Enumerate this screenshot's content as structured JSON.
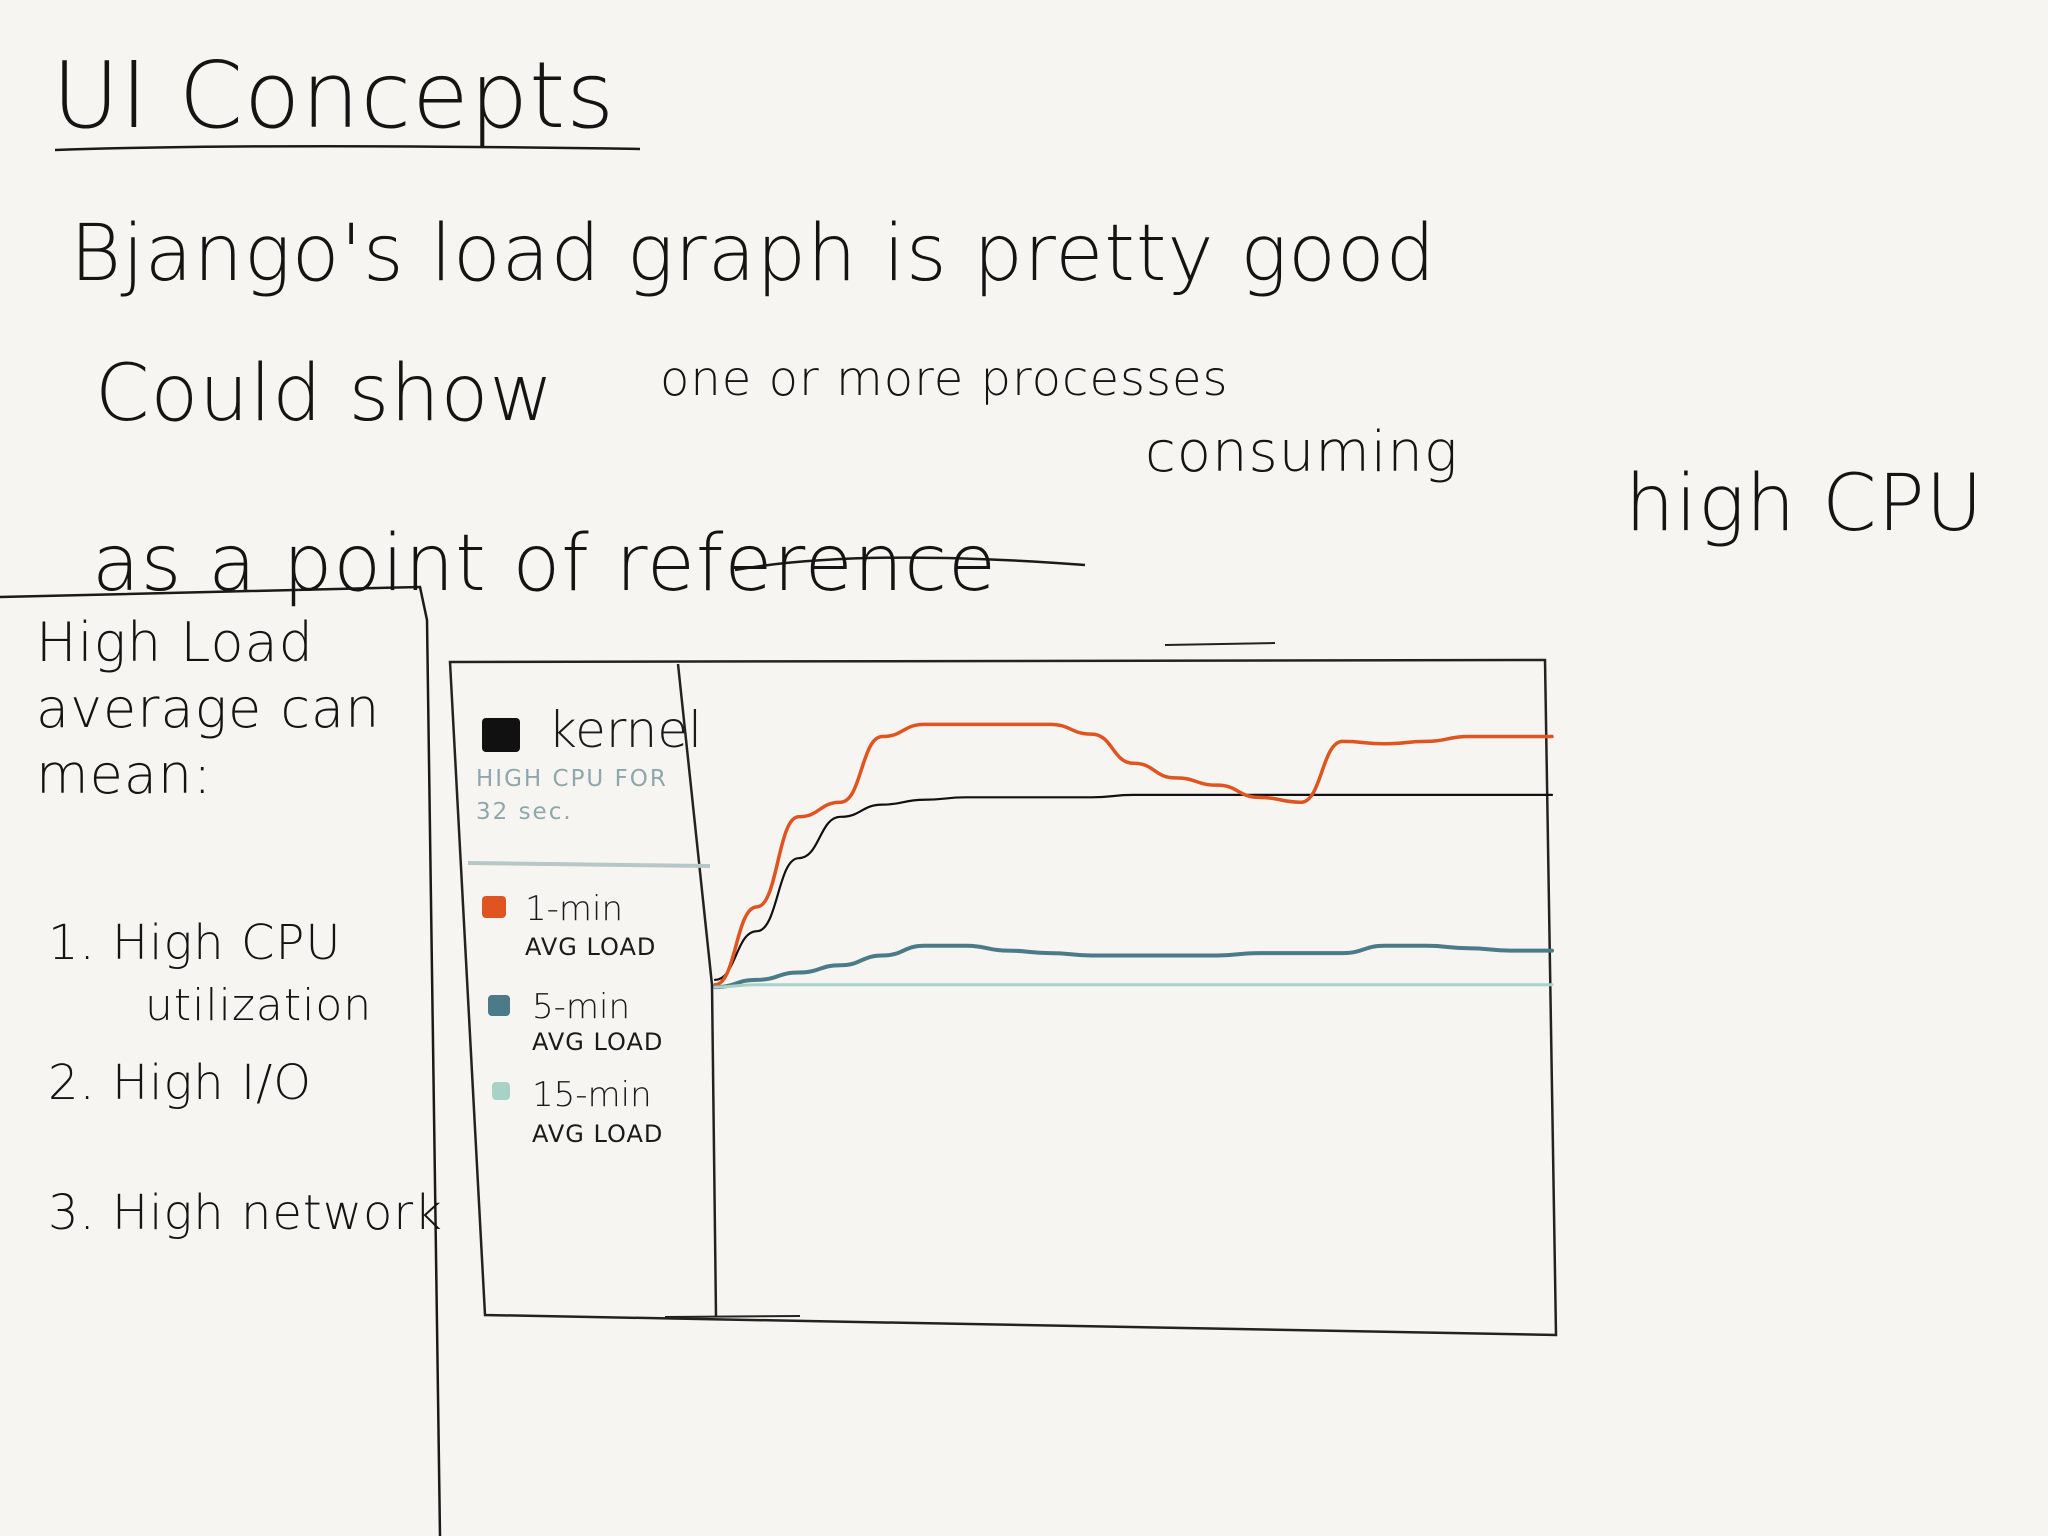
{
  "heading": {
    "title": "UI Concepts"
  },
  "notes": {
    "line1": "Bjango's load graph is pretty good",
    "line2_start": "Could show",
    "line2_inserted": "one or more processes",
    "line2_mid": "consuming",
    "line2_end": "high CPU",
    "line3": "as a point of reference"
  },
  "side_notes": {
    "title": "High Load average can mean:",
    "items": [
      "1. High CPU",
      "utilization",
      "2. High I/O",
      "3. High network"
    ]
  },
  "legend": {
    "kernel": {
      "label": "kernel",
      "note": "HIGH CPU FOR 32 sec.",
      "color": "#111111"
    },
    "series": [
      {
        "label": "1-min",
        "sub": "AVG LOAD",
        "color": "#e0541f"
      },
      {
        "label": "5-min",
        "sub": "AVG LOAD",
        "color": "#4b7a88"
      },
      {
        "label": "15-min",
        "sub": "AVG LOAD",
        "color": "#a8d2c7"
      }
    ]
  },
  "chart_data": {
    "type": "line",
    "title": "",
    "xlabel": "",
    "ylabel": "",
    "grid": false,
    "legend_position": "left",
    "x": [
      0,
      1,
      2,
      3,
      4,
      5,
      6,
      7,
      8,
      9,
      10,
      11,
      12,
      13,
      14,
      15,
      16,
      17,
      18,
      19,
      20
    ],
    "series": [
      {
        "name": "kernel",
        "color": "#111111",
        "values": [
          0.05,
          0.25,
          0.55,
          0.72,
          0.77,
          0.79,
          0.8,
          0.8,
          0.8,
          0.8,
          0.81,
          0.81,
          0.81,
          0.81,
          0.81,
          0.81,
          0.81,
          0.81,
          0.81,
          0.81,
          0.81
        ]
      },
      {
        "name": "1-min",
        "color": "#e0541f",
        "values": [
          0.03,
          0.35,
          0.72,
          0.78,
          1.05,
          1.1,
          1.1,
          1.1,
          1.1,
          1.06,
          0.94,
          0.88,
          0.85,
          0.8,
          0.78,
          1.03,
          1.02,
          1.03,
          1.05,
          1.05,
          1.05
        ]
      },
      {
        "name": "5-min",
        "color": "#4b7a88",
        "values": [
          0.02,
          0.05,
          0.08,
          0.11,
          0.15,
          0.19,
          0.19,
          0.17,
          0.16,
          0.15,
          0.15,
          0.15,
          0.15,
          0.16,
          0.16,
          0.16,
          0.19,
          0.19,
          0.18,
          0.17,
          0.17
        ]
      },
      {
        "name": "15-min",
        "color": "#a8d2c7",
        "values": [
          0.02,
          0.03,
          0.03,
          0.03,
          0.03,
          0.03,
          0.03,
          0.03,
          0.03,
          0.03,
          0.03,
          0.03,
          0.03,
          0.03,
          0.03,
          0.03,
          0.03,
          0.03,
          0.03,
          0.03,
          0.03
        ]
      }
    ],
    "ylim": [
      0,
      1.2
    ]
  }
}
